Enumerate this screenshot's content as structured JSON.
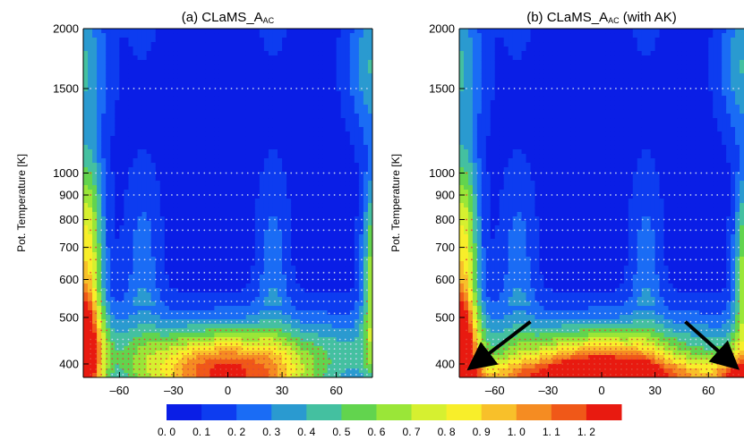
{
  "chart_data": [
    {
      "type": "heatmap",
      "title_main": "(a) CLaMS_A",
      "title_sub": "AC",
      "title_suffix": "",
      "ylabel": "Pot. Temperature [K]",
      "xlabel": "",
      "y_scale": "log",
      "ylim": [
        375,
        2000
      ],
      "xlim": [
        -80,
        80
      ],
      "yticks": [
        400,
        500,
        600,
        700,
        800,
        900,
        1000,
        1500,
        2000
      ],
      "xticks": [
        -60,
        -30,
        0,
        30,
        60
      ],
      "has_arrows": false
    },
    {
      "type": "heatmap",
      "title_main": "(b) CLaMS_A",
      "title_sub": "AC",
      "title_suffix": " (with AK)",
      "ylabel": "Pot. Temperature [K]",
      "xlabel": "",
      "y_scale": "log",
      "ylim": [
        375,
        2000
      ],
      "xlim": [
        -80,
        80
      ],
      "yticks": [
        400,
        500,
        600,
        700,
        800,
        900,
        1000,
        1500,
        2000
      ],
      "xticks": [
        -60,
        -30,
        0,
        30,
        60
      ],
      "has_arrows": true
    }
  ],
  "colorbar": {
    "ticks": [
      "0. 0",
      "0. 1",
      "0. 2",
      "0. 3",
      "0. 4",
      "0. 5",
      "0. 6",
      "0. 7",
      "0. 8",
      "0. 9",
      "1. 0",
      "1. 1",
      "1. 2"
    ],
    "colors": [
      "#0a1ee6",
      "#0d3cf0",
      "#1a6cf5",
      "#2a9ad0",
      "#44c0a0",
      "#62d44e",
      "#9ae638",
      "#d6f030",
      "#f8ee2a",
      "#f8c02a",
      "#f58c22",
      "#f05818",
      "#e81a10"
    ]
  }
}
